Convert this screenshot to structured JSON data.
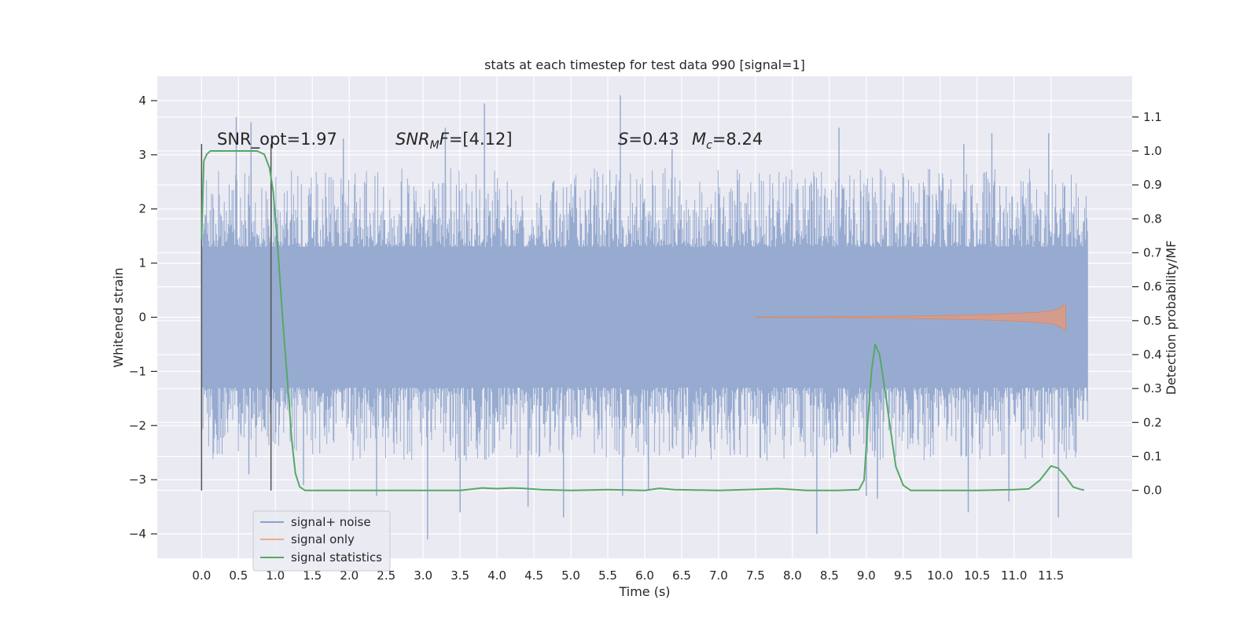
{
  "chart_data": {
    "type": "line",
    "title": "stats at each timestep for test data 990 [signal=1]",
    "xlabel": "Time (s)",
    "ylabel": "Whitened strain",
    "y2label": "Detection probability/MF",
    "xlim": [
      -0.6,
      12.6
    ],
    "ylim": [
      -4.45,
      4.45
    ],
    "y2lim": [
      -0.2,
      1.22
    ],
    "x_ticks": [
      "0.0",
      "0.5",
      "1.0",
      "1.5",
      "2.0",
      "2.5",
      "3.0",
      "3.5",
      "4.0",
      "4.5",
      "5.0",
      "5.5",
      "6.0",
      "6.5",
      "7.0",
      "7.5",
      "8.0",
      "8.5",
      "9.0",
      "9.5",
      "10.0",
      "10.5",
      "11.0",
      "11.5"
    ],
    "y_ticks": [
      "4",
      "3",
      "2",
      "1",
      "0",
      "−1",
      "−2",
      "−3",
      "−4"
    ],
    "y2_ticks": [
      "1.1",
      "1.0",
      "0.9",
      "0.8",
      "0.7",
      "0.6",
      "0.5",
      "0.4",
      "0.3",
      "0.2",
      "0.1",
      "0.0"
    ],
    "annotations": {
      "snr_opt": "SNR_opt=1.97",
      "snr_mf_label": "SNR",
      "snr_mf_sub": "M",
      "snr_mf_rest": "F=[4.12]",
      "s_label": "S",
      "s_value": "=0.43",
      "mc_label": "M",
      "mc_sub": "c",
      "mc_value": "=8.24"
    },
    "window_markers_x": [
      0.0,
      0.94
    ],
    "series": [
      {
        "name": "signal+ noise",
        "color": "#4c72b0",
        "description_values": "dense noise band between about -2.2 and 2.6 with spikes to ±4",
        "x_range": [
          0.0,
          12.0
        ],
        "band_y": [
          -1.9,
          1.95
        ],
        "spikes_up": [
          [
            0.47,
            3.7
          ],
          [
            0.67,
            3.6
          ],
          [
            1.92,
            3.3
          ],
          [
            3.3,
            3.5
          ],
          [
            3.83,
            3.95
          ],
          [
            5.67,
            4.1
          ],
          [
            6.37,
            3.1
          ],
          [
            8.63,
            3.5
          ],
          [
            10.32,
            3.2
          ],
          [
            10.7,
            3.4
          ],
          [
            11.47,
            3.4
          ]
        ],
        "spikes_down": [
          [
            0.0,
            -2.1
          ],
          [
            0.64,
            -2.9
          ],
          [
            1.38,
            -3.1
          ],
          [
            2.37,
            -3.3
          ],
          [
            3.06,
            -4.1
          ],
          [
            3.5,
            -3.6
          ],
          [
            4.42,
            -3.5
          ],
          [
            4.9,
            -3.7
          ],
          [
            5.7,
            -3.3
          ],
          [
            6.05,
            -3.2
          ],
          [
            8.33,
            -4.0
          ],
          [
            9.0,
            -3.3
          ],
          [
            9.15,
            -3.35
          ],
          [
            10.38,
            -3.6
          ],
          [
            10.93,
            -3.4
          ],
          [
            11.6,
            -3.7
          ]
        ]
      },
      {
        "name": "signal only",
        "color": "#dd8452",
        "chirp_x": [
          7.5,
          8.5,
          9.5,
          10.0,
          10.5,
          11.0,
          11.3,
          11.5,
          11.6,
          11.65,
          11.7
        ],
        "chirp_amp": [
          0.005,
          0.01,
          0.02,
          0.03,
          0.045,
          0.07,
          0.09,
          0.12,
          0.16,
          0.2,
          0.25
        ]
      },
      {
        "name": "signal statistics",
        "color": "#55a868",
        "axis": "right",
        "x": [
          0.0,
          0.03,
          0.07,
          0.12,
          0.2,
          0.3,
          0.45,
          0.6,
          0.75,
          0.85,
          0.92,
          0.97,
          1.03,
          1.1,
          1.17,
          1.22,
          1.27,
          1.33,
          1.4,
          1.5,
          2.0,
          2.5,
          3.0,
          3.5,
          3.8,
          4.0,
          4.2,
          4.35,
          4.6,
          5.0,
          5.5,
          6.0,
          6.2,
          6.4,
          7.0,
          7.5,
          7.8,
          8.2,
          8.6,
          8.9,
          8.97,
          9.02,
          9.07,
          9.12,
          9.18,
          9.25,
          9.32,
          9.4,
          9.5,
          9.6,
          10.0,
          10.5,
          11.0,
          11.2,
          11.35,
          11.5,
          11.6,
          11.7,
          11.8,
          11.9,
          11.95
        ],
        "y": [
          0.74,
          0.97,
          0.99,
          1.0,
          1.0,
          1.0,
          1.0,
          1.0,
          1.0,
          0.99,
          0.95,
          0.88,
          0.72,
          0.5,
          0.3,
          0.15,
          0.05,
          0.01,
          0.0,
          0.0,
          0.0,
          0.0,
          0.0,
          0.0,
          0.007,
          0.005,
          0.007,
          0.006,
          0.002,
          0.0,
          0.002,
          0.0,
          0.006,
          0.002,
          0.0,
          0.003,
          0.005,
          0.0,
          0.0,
          0.002,
          0.03,
          0.2,
          0.35,
          0.43,
          0.4,
          0.3,
          0.19,
          0.07,
          0.015,
          0.0,
          0.0,
          0.0,
          0.002,
          0.004,
          0.03,
          0.072,
          0.065,
          0.04,
          0.01,
          0.003,
          0.001
        ]
      }
    ],
    "legend": {
      "position": "lower-left",
      "entries": [
        "signal+ noise",
        "signal only",
        "signal statistics"
      ]
    },
    "grid": true
  }
}
